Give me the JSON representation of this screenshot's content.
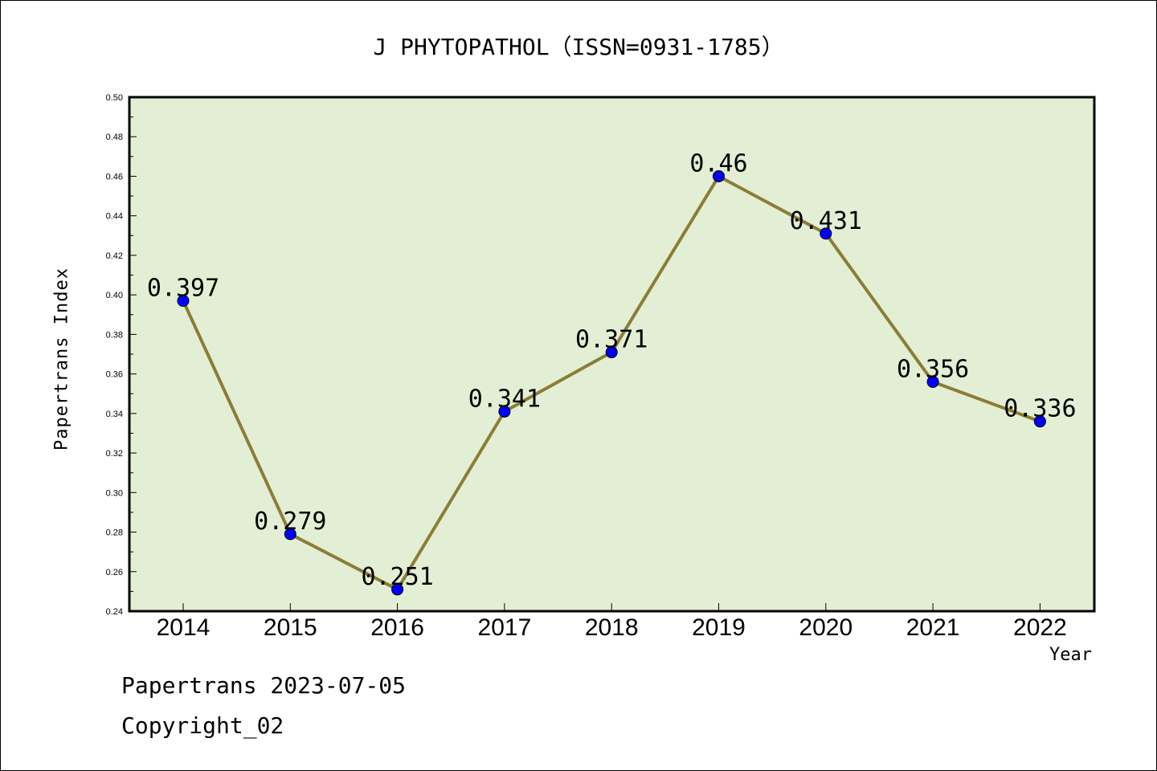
{
  "chart_data": {
    "type": "line",
    "title": "J PHYTOPATHOL（ISSN=0931-1785）",
    "xlabel": "Year",
    "ylabel": "Papertrans Index",
    "categories": [
      "2014",
      "2015",
      "2016",
      "2017",
      "2018",
      "2019",
      "2020",
      "2021",
      "2022"
    ],
    "series": [
      {
        "values": [
          0.397,
          0.279,
          0.251,
          0.341,
          0.371,
          0.46,
          0.431,
          0.356,
          0.336
        ],
        "data_labels": [
          "0.397",
          "0.279",
          "0.251",
          "0.341",
          "0.371",
          "0.46",
          "0.431",
          "0.356",
          "0.336"
        ]
      }
    ],
    "ylim": [
      0.24,
      0.5
    ],
    "yticks": [
      "0.24",
      "0.26",
      "0.28",
      "0.30",
      "0.32",
      "0.34",
      "0.36",
      "0.38",
      "0.40",
      "0.42",
      "0.44",
      "0.46",
      "0.48",
      "0.50"
    ],
    "grid": false,
    "colors": {
      "plot_background": "#e2efd5",
      "line": "#8b7d36",
      "marker": "#0000ff"
    }
  },
  "footer": {
    "date_line": "Papertrans 2023-07-05",
    "copyright_line": "Copyright_02"
  }
}
